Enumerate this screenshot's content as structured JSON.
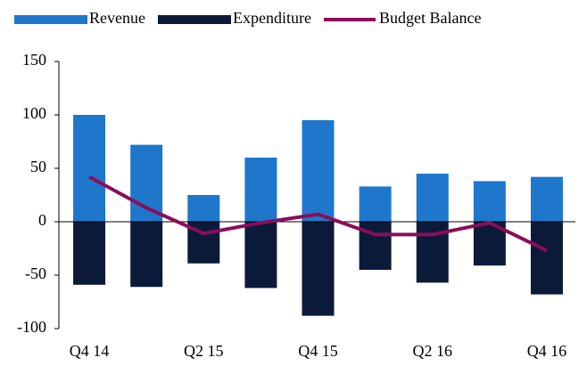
{
  "chart_data": {
    "type": "bar",
    "categories": [
      "Q4 14",
      null,
      "Q2 15",
      null,
      "Q4 15",
      null,
      "Q2 16",
      null,
      "Q4 16"
    ],
    "series": [
      {
        "name": "Revenue",
        "type": "bar",
        "color": "#1f77cc",
        "values": [
          100,
          72,
          25,
          60,
          95,
          33,
          45,
          38,
          42
        ]
      },
      {
        "name": "Expenditure",
        "type": "bar",
        "color": "#0c1a3a",
        "values": [
          -59,
          -61,
          -39,
          -62,
          -88,
          -45,
          -57,
          -41,
          -68
        ]
      },
      {
        "name": "Budget Balance",
        "type": "line",
        "color": "#8a0d5a",
        "values": [
          42,
          13,
          -11,
          -1,
          7,
          -12,
          -12,
          -1,
          -27
        ]
      }
    ],
    "ylim": [
      -100,
      150
    ],
    "yticks": [
      -100,
      -50,
      0,
      50,
      100,
      150
    ]
  }
}
